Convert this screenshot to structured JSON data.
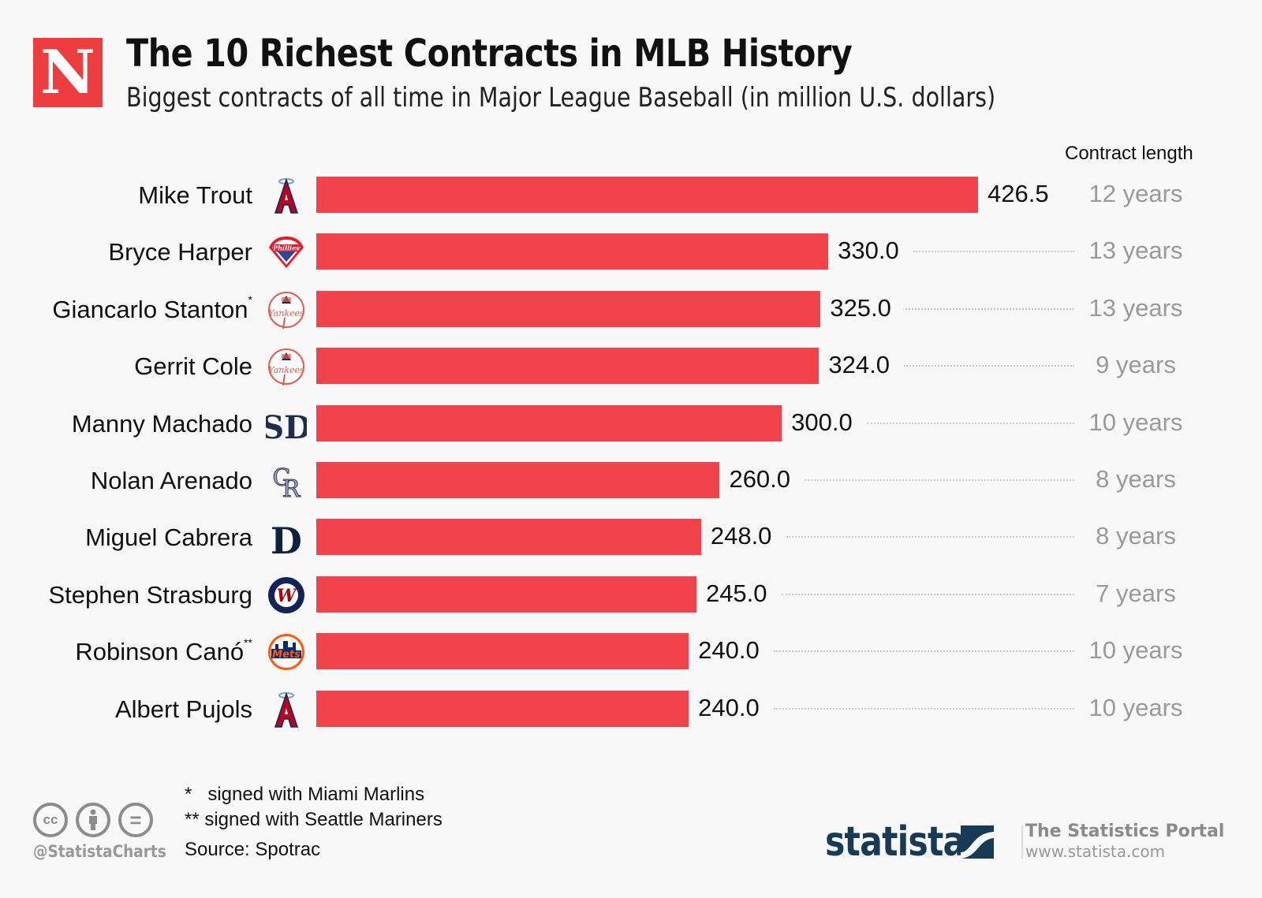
{
  "brand": {
    "logo_letter": "N",
    "accent": "#ee3d3f"
  },
  "chart_data": {
    "type": "bar",
    "orientation": "horizontal",
    "title": "The 10 Richest Contracts in MLB History",
    "subtitle": "Biggest contracts of all time in Major League Baseball (in million U.S. dollars)",
    "xlabel": "",
    "ylabel": "",
    "xlim": [
      0,
      426.5
    ],
    "grid": false,
    "bar_color": "#f2434a",
    "secondary_column_header": "Contract length",
    "categories": [
      "Mike Trout",
      "Bryce Harper",
      "Giancarlo Stanton",
      "Gerrit Cole",
      "Manny Machado",
      "Nolan Arenado",
      "Miguel Cabrera",
      "Stephen Strasburg",
      "Robinson Canó",
      "Albert Pujols"
    ],
    "footnote_marks": [
      "",
      "",
      "*",
      "",
      "",
      "",
      "",
      "",
      "**",
      ""
    ],
    "teams": [
      "Los Angeles Angels",
      "Philadelphia Phillies",
      "New York Yankees",
      "New York Yankees",
      "San Diego Padres",
      "Colorado Rockies",
      "Detroit Tigers",
      "Washington Nationals",
      "New York Mets",
      "Los Angeles Angels"
    ],
    "team_icons": [
      "angels-logo-icon",
      "phillies-logo-icon",
      "yankees-logo-icon",
      "yankees-logo-icon",
      "padres-logo-icon",
      "rockies-logo-icon",
      "tigers-logo-icon",
      "nationals-logo-icon",
      "mets-logo-icon",
      "angels-logo-icon"
    ],
    "values": [
      426.5,
      330.0,
      325.0,
      324.0,
      300.0,
      260.0,
      248.0,
      245.0,
      240.0,
      240.0
    ],
    "value_labels": [
      "426.5",
      "330.0",
      "325.0",
      "324.0",
      "300.0",
      "260.0",
      "248.0",
      "245.0",
      "240.0",
      "240.0"
    ],
    "contract_length": [
      "12 years",
      "13 years",
      "13 years",
      "9 years",
      "10 years",
      "8 years",
      "8 years",
      "7 years",
      "10 years",
      "10 years"
    ]
  },
  "footer": {
    "notes": [
      "*   signed with Miami Marlins",
      "** signed with Seattle Mariners"
    ],
    "source": "Source: Spotrac",
    "handle": "@StatistaCharts",
    "cc_icons": [
      "cc",
      "by",
      "nd"
    ],
    "cc_glyphs": [
      "cc",
      "",
      "="
    ],
    "statista_wordmark": "statista",
    "portal_title": "The Statistics Portal",
    "portal_url": "www.statista.com"
  }
}
